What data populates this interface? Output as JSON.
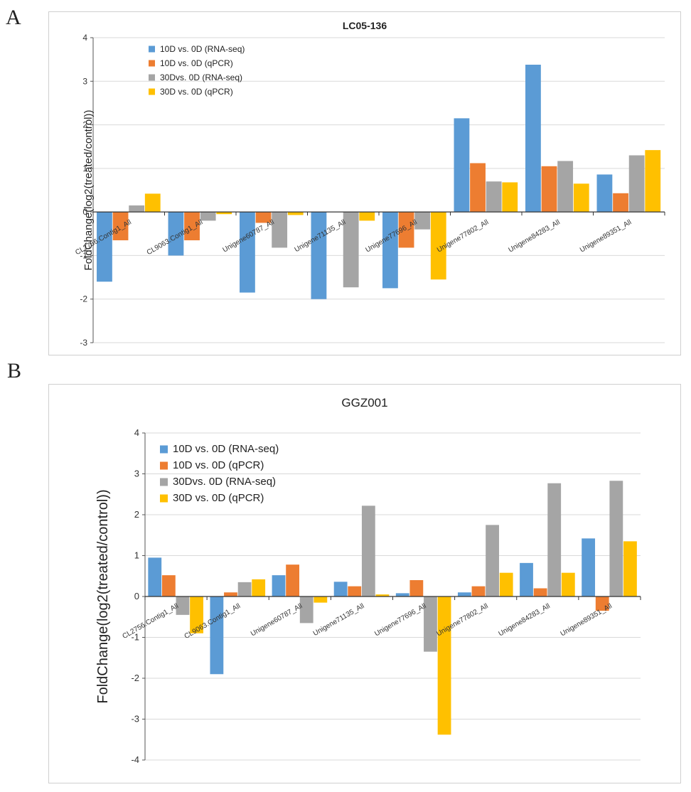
{
  "panels": [
    {
      "letter": "A"
    },
    {
      "letter": "B"
    }
  ],
  "chart_data": [
    {
      "type": "bar",
      "title": "LC05-136",
      "xlabel": "",
      "ylabel": "FoldChange(log2(treated/control))",
      "ylim": [
        -3,
        4
      ],
      "yticks": [
        "-3",
        "-2",
        "-1",
        "0",
        "1",
        "2",
        "3",
        "4"
      ],
      "grid": true,
      "legend_position": "top-left",
      "categories": [
        "CL2756.Contig1_All",
        "CL9063.Contig1_All",
        "Unigene60787_All",
        "Unigene71135_All",
        "Unigene77696_All",
        "Unigene77802_All",
        "Unigene84283_All",
        "Unigene89351_All"
      ],
      "series": [
        {
          "name": "10D vs. 0D (RNA-seq)",
          "color": "#5b9bd5",
          "values": [
            -1.6,
            -1.0,
            -1.85,
            -2.0,
            -1.75,
            2.15,
            3.38,
            0.86
          ]
        },
        {
          "name": "10D vs. 0D (qPCR)",
          "color": "#ed7d31",
          "values": [
            -0.65,
            -0.65,
            -0.25,
            0.0,
            -0.82,
            1.12,
            1.05,
            0.43
          ]
        },
        {
          "name": "30Dvs. 0D (RNA-seq)",
          "color": "#a5a5a5",
          "values": [
            0.15,
            -0.2,
            -0.82,
            -1.73,
            -0.4,
            0.7,
            1.17,
            1.3
          ]
        },
        {
          "name": "30D vs. 0D (qPCR)",
          "color": "#ffc000",
          "values": [
            0.42,
            -0.05,
            -0.07,
            -0.2,
            -1.55,
            0.68,
            0.65,
            1.42
          ]
        }
      ]
    },
    {
      "type": "bar",
      "title": "GGZ001",
      "xlabel": "",
      "ylabel": "FoldChange(log2(treated/control))",
      "ylim": [
        -4,
        4
      ],
      "yticks": [
        "-4",
        "-3",
        "-2",
        "-1",
        "0",
        "1",
        "2",
        "3",
        "4"
      ],
      "grid": true,
      "legend_position": "top-left",
      "categories": [
        "CL2756.Contig1_All",
        "CL9063.Contig1_All",
        "Unigene60787_All",
        "Unigene71135_All",
        "Unigene77696_All",
        "Unigene77802_All",
        "Unigene84283_All",
        "Unigene89351_All"
      ],
      "series": [
        {
          "name": "10D vs. 0D (RNA-seq)",
          "color": "#5b9bd5",
          "values": [
            0.95,
            -1.9,
            0.52,
            0.36,
            0.08,
            0.1,
            0.82,
            1.42
          ]
        },
        {
          "name": "10D vs. 0D (qPCR)",
          "color": "#ed7d31",
          "values": [
            0.52,
            0.1,
            0.78,
            0.25,
            0.4,
            0.25,
            0.2,
            -0.35
          ]
        },
        {
          "name": "30Dvs. 0D (RNA-seq)",
          "color": "#a5a5a5",
          "values": [
            -0.45,
            0.35,
            -0.65,
            2.22,
            -1.35,
            1.75,
            2.77,
            2.83
          ]
        },
        {
          "name": "30D vs. 0D (qPCR)",
          "color": "#ffc000",
          "values": [
            -0.9,
            0.42,
            -0.15,
            0.05,
            -3.38,
            0.58,
            0.58,
            1.35
          ]
        }
      ]
    }
  ]
}
